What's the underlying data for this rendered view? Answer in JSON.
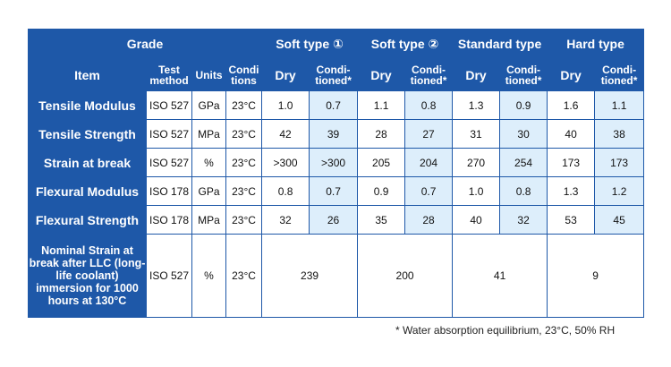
{
  "header": {
    "grade": "Grade",
    "item": "Item",
    "test_method": "Test method",
    "units": "Units",
    "conditions": "Condi tions",
    "types": [
      "Soft type ①",
      "Soft type ②",
      "Standard type",
      "Hard type"
    ],
    "dry": "Dry",
    "conditioned": "Condi- tioned*"
  },
  "rows": [
    {
      "item": "Tensile Modulus",
      "method": "ISO 527",
      "unit": "GPa",
      "cond": "23°C",
      "values": [
        "1.0",
        "0.7",
        "1.1",
        "0.8",
        "1.3",
        "0.9",
        "1.6",
        "1.1"
      ]
    },
    {
      "item": "Tensile Strength",
      "method": "ISO 527",
      "unit": "MPa",
      "cond": "23°C",
      "values": [
        "42",
        "39",
        "28",
        "27",
        "31",
        "30",
        "40",
        "38"
      ]
    },
    {
      "item": "Strain at break",
      "method": "ISO 527",
      "unit": "%",
      "cond": "23°C",
      "values": [
        ">300",
        ">300",
        "205",
        "204",
        "270",
        "254",
        "173",
        "173"
      ]
    },
    {
      "item": "Flexural Modulus",
      "method": "ISO 178",
      "unit": "GPa",
      "cond": "23°C",
      "values": [
        "0.8",
        "0.7",
        "0.9",
        "0.7",
        "1.0",
        "0.8",
        "1.3",
        "1.2"
      ]
    },
    {
      "item": "Flexural Strength",
      "method": "ISO 178",
      "unit": "MPa",
      "cond": "23°C",
      "values": [
        "32",
        "26",
        "35",
        "28",
        "40",
        "32",
        "53",
        "45"
      ]
    }
  ],
  "llc_row": {
    "item": "Nominal Strain at break after LLC (long-life coolant) immersion for 1000 hours at 130°C",
    "method": "ISO 527",
    "unit": "%",
    "cond": "23°C",
    "values": [
      "239",
      "200",
      "41",
      "9"
    ]
  },
  "footnote": "* Water absorption equilibrium, 23°C, 50% RH"
}
